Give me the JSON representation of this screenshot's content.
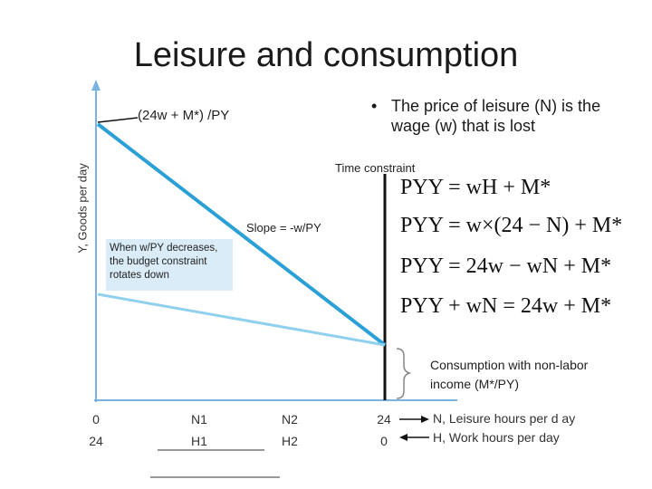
{
  "title": "Leisure and consumption",
  "bullet": {
    "dot": "•",
    "text": "The price of leisure (N) is the wage (w) that is lost"
  },
  "axis": {
    "ylabel": "Y, Goods per day"
  },
  "labels": {
    "intercept": "(24w + M*) /PY",
    "time_constraint": "Time constraint",
    "slope": "Slope = -w/PY",
    "callout": "When w/PY decreases, the budget constraint rotates down",
    "nonlabor": "Consumption with non-labor income (M*/PY)"
  },
  "equations": [
    "PYY = wH + M*",
    "PYY = w×(24 − N) + M*",
    "PYY = 24w − wN + M*",
    "PYY + wN = 24w + M*"
  ],
  "x_ticks": [
    {
      "top": "0",
      "bottom": "24"
    },
    {
      "top": "N1",
      "bottom": "H1"
    },
    {
      "top": "N2",
      "bottom": "H2"
    },
    {
      "top": "24",
      "bottom": "0"
    }
  ],
  "legend": {
    "leisure": "N, Leisure hours per d ay",
    "work": "H, Work hours per day"
  },
  "colors": {
    "budget_line": "#2aa0d6",
    "rotated_line": "#8fd0ee",
    "axis": "#7ab4de",
    "callout_bg": "#d9ecf7"
  }
}
